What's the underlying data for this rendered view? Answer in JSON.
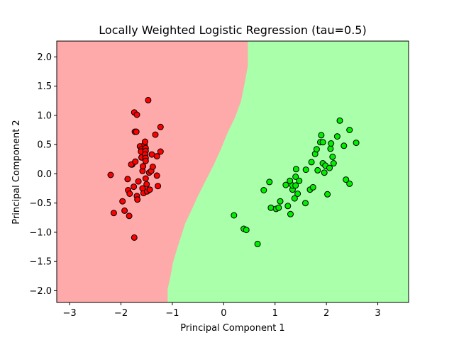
{
  "chart_data": {
    "type": "scatter",
    "title": "Locally Weighted Logistic Regression (tau=0.5)",
    "xlabel": "Principal Component 1",
    "ylabel": "Principal Component 2",
    "xlim": [
      -3.25,
      3.6
    ],
    "ylim": [
      -2.2,
      2.27
    ],
    "xticks": [
      -3,
      -2,
      -1,
      0,
      1,
      2,
      3
    ],
    "yticks": [
      -2.0,
      -1.5,
      -1.0,
      -0.5,
      0.0,
      0.5,
      1.0,
      1.5,
      2.0
    ],
    "xtick_labels": [
      "−3",
      "−2",
      "−1",
      "0",
      "1",
      "2",
      "3"
    ],
    "ytick_labels": [
      "−2.0",
      "−1.5",
      "−1.0",
      "−0.5",
      "0.0",
      "0.5",
      "1.0",
      "1.5",
      "2.0"
    ],
    "region_colors": {
      "class_0": "#ffaaaa",
      "class_1": "#aaffaa"
    },
    "decision_boundary": [
      [
        -1.09,
        -2.2
      ],
      [
        -1.09,
        -1.97
      ],
      [
        -1.03,
        -1.73
      ],
      [
        -0.99,
        -1.53
      ],
      [
        -0.93,
        -1.35
      ],
      [
        -0.86,
        -1.15
      ],
      [
        -0.75,
        -0.85
      ],
      [
        -0.62,
        -0.61
      ],
      [
        -0.49,
        -0.36
      ],
      [
        -0.34,
        -0.1
      ],
      [
        -0.19,
        0.16
      ],
      [
        -0.06,
        0.41
      ],
      [
        0.08,
        0.71
      ],
      [
        0.22,
        0.96
      ],
      [
        0.34,
        1.25
      ],
      [
        0.42,
        1.6
      ],
      [
        0.47,
        1.85
      ],
      [
        0.47,
        2.27
      ]
    ],
    "series": [
      {
        "name": "class_0",
        "color": "#ff0000",
        "points": [
          [
            -2.2,
            -0.02
          ],
          [
            -2.14,
            -0.67
          ],
          [
            -1.97,
            -0.47
          ],
          [
            -1.93,
            -0.63
          ],
          [
            -1.87,
            -0.09
          ],
          [
            -1.84,
            -0.72
          ],
          [
            -1.86,
            -0.28
          ],
          [
            -1.83,
            -0.34
          ],
          [
            -1.78,
            0.16
          ],
          [
            -1.8,
            0.16
          ],
          [
            -1.74,
            1.05
          ],
          [
            -1.73,
            0.72
          ],
          [
            -1.7,
            0.72
          ],
          [
            -1.69,
            1.01
          ],
          [
            -1.74,
            -1.09
          ],
          [
            -1.72,
            0.21
          ],
          [
            -1.75,
            -0.22
          ],
          [
            -1.69,
            -0.38
          ],
          [
            -1.68,
            -0.44
          ],
          [
            -1.66,
            -0.13
          ],
          [
            -1.63,
            0.47
          ],
          [
            -1.6,
            0.42
          ],
          [
            -1.61,
            0.38
          ],
          [
            -1.6,
            0.28
          ],
          [
            -1.58,
            0.05
          ],
          [
            -1.57,
            0.13
          ],
          [
            -1.58,
            -0.25
          ],
          [
            -1.56,
            -0.33
          ],
          [
            -1.54,
            0.5
          ],
          [
            -1.52,
            0.44
          ],
          [
            -1.52,
            0.39
          ],
          [
            -1.53,
            0.33
          ],
          [
            -1.52,
            0.27
          ],
          [
            -1.52,
            0.22
          ],
          [
            -1.52,
            -0.08
          ],
          [
            -1.5,
            -0.18
          ],
          [
            -1.49,
            -0.3
          ],
          [
            -1.45,
            0.02
          ],
          [
            -1.44,
            -0.27
          ],
          [
            -1.47,
            1.26
          ],
          [
            -1.41,
            0.05
          ],
          [
            -1.38,
            0.12
          ],
          [
            -1.4,
            0.33
          ],
          [
            -1.33,
            0.67
          ],
          [
            -1.3,
            -0.03
          ],
          [
            -1.28,
            -0.21
          ],
          [
            -1.3,
            0.3
          ],
          [
            -1.23,
            0.8
          ],
          [
            -1.23,
            0.38
          ],
          [
            -1.53,
            0.55
          ]
        ]
      },
      {
        "name": "class_1",
        "color": "#00ee00",
        "points": [
          [
            0.2,
            -0.71
          ],
          [
            0.39,
            -0.94
          ],
          [
            0.44,
            -0.96
          ],
          [
            0.66,
            -1.2
          ],
          [
            0.78,
            -0.28
          ],
          [
            0.89,
            -0.14
          ],
          [
            0.92,
            -0.58
          ],
          [
            1.02,
            -0.6
          ],
          [
            1.07,
            -0.58
          ],
          [
            1.1,
            -0.47
          ],
          [
            1.21,
            -0.19
          ],
          [
            1.25,
            -0.55
          ],
          [
            1.29,
            -0.12
          ],
          [
            1.3,
            -0.69
          ],
          [
            1.34,
            -0.27
          ],
          [
            1.34,
            -0.2
          ],
          [
            1.38,
            -0.42
          ],
          [
            1.4,
            -0.2
          ],
          [
            1.4,
            -0.05
          ],
          [
            1.41,
            0.08
          ],
          [
            1.44,
            -0.34
          ],
          [
            1.47,
            -0.12
          ],
          [
            1.6,
            0.07
          ],
          [
            1.59,
            -0.5
          ],
          [
            1.68,
            -0.27
          ],
          [
            1.71,
            0.2
          ],
          [
            1.74,
            -0.23
          ],
          [
            1.78,
            0.34
          ],
          [
            1.81,
            0.42
          ],
          [
            1.83,
            0.06
          ],
          [
            1.88,
            0.54
          ],
          [
            1.9,
            0.66
          ],
          [
            1.93,
            0.54
          ],
          [
            1.93,
            0.18
          ],
          [
            1.96,
            0.02
          ],
          [
            1.98,
            0.14
          ],
          [
            2.02,
            -0.35
          ],
          [
            2.06,
            0.1
          ],
          [
            2.08,
            0.43
          ],
          [
            2.09,
            0.52
          ],
          [
            2.12,
            0.29
          ],
          [
            2.14,
            0.18
          ],
          [
            2.21,
            0.64
          ],
          [
            2.26,
            0.91
          ],
          [
            2.34,
            0.48
          ],
          [
            2.38,
            -0.1
          ],
          [
            2.45,
            -0.17
          ],
          [
            2.45,
            0.75
          ],
          [
            2.58,
            0.53
          ]
        ]
      }
    ]
  }
}
